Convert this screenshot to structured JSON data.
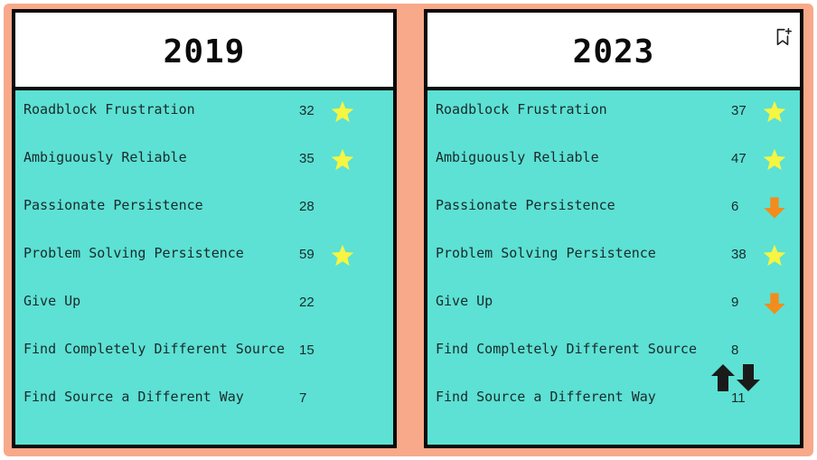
{
  "panels": [
    {
      "year": "2019",
      "rows": [
        {
          "label": "Roadblock Frustration",
          "value": "32",
          "icon": "star-icon"
        },
        {
          "label": "Ambiguously Reliable",
          "value": "35",
          "icon": "star-icon"
        },
        {
          "label": "Passionate Persistence",
          "value": "28",
          "icon": ""
        },
        {
          "label": "Problem Solving Persistence",
          "value": "59",
          "icon": "star-icon"
        },
        {
          "label": "Give Up",
          "value": "22",
          "icon": ""
        },
        {
          "label": "Find Completely Different Source",
          "value": "15",
          "icon": ""
        },
        {
          "label": "Find Source a Different Way",
          "value": "7",
          "icon": ""
        }
      ]
    },
    {
      "year": "2023",
      "rows": [
        {
          "label": "Roadblock Frustration",
          "value": "37",
          "icon": "star-icon"
        },
        {
          "label": "Ambiguously Reliable",
          "value": "47",
          "icon": "star-icon"
        },
        {
          "label": "Passionate Persistence",
          "value": "6",
          "icon": "arrow-down-icon"
        },
        {
          "label": "Problem Solving Persistence",
          "value": "38",
          "icon": "star-icon"
        },
        {
          "label": "Give Up",
          "value": "9",
          "icon": "arrow-down-icon"
        },
        {
          "label": "Find Completely Different Source",
          "value": "8",
          "icon": ""
        },
        {
          "label": "Find Source a Different Way",
          "value": "11",
          "icon": ""
        }
      ]
    }
  ],
  "colors": {
    "background": "#f8a98a",
    "panel_fill": "#5ce1d4",
    "border": "#0a0a0a",
    "star": "#f5f542",
    "arrow_down": "#f28c1c"
  }
}
